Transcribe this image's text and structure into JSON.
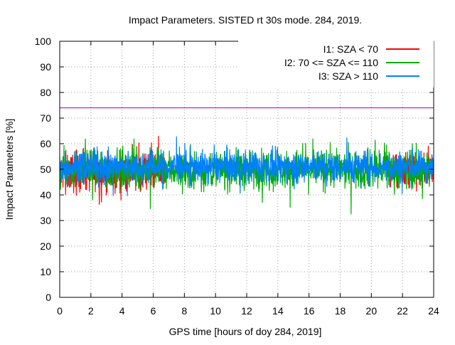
{
  "chart_data": {
    "type": "line",
    "title": "Impact Parameters. SISTED rt 30s mode. 284, 2019.",
    "xlabel": "GPS time [hours of doy 284, 2019]",
    "ylabel": "Impact Parameters [%]",
    "xlim": [
      0,
      24
    ],
    "ylim": [
      0,
      100
    ],
    "xticks": [
      0,
      2,
      4,
      6,
      8,
      10,
      12,
      14,
      16,
      18,
      20,
      22,
      24
    ],
    "yticks": [
      0,
      10,
      20,
      30,
      40,
      50,
      60,
      70,
      80,
      90,
      100
    ],
    "grid": true,
    "legend_position": "top-right",
    "series": [
      {
        "name": "I1: SZA < 70",
        "color": "#ff0000",
        "baseline": 49,
        "typical_min": 42,
        "typical_max": 57,
        "segments": [
          [
            0,
            6.8
          ],
          [
            21.2,
            24
          ]
        ]
      },
      {
        "name": "I2: 70 <= SZA <= 110",
        "color": "#00aa00",
        "baseline": 50,
        "typical_min": 43,
        "typical_max": 58,
        "segments": [
          [
            0,
            24
          ]
        ]
      },
      {
        "name": "I3: SZA > 110",
        "color": "#0080ff",
        "baseline": 51,
        "typical_min": 45,
        "typical_max": 57,
        "segments": [
          [
            0,
            24
          ]
        ]
      }
    ],
    "reference_line": {
      "value": 74,
      "color": "#a000a0"
    }
  }
}
